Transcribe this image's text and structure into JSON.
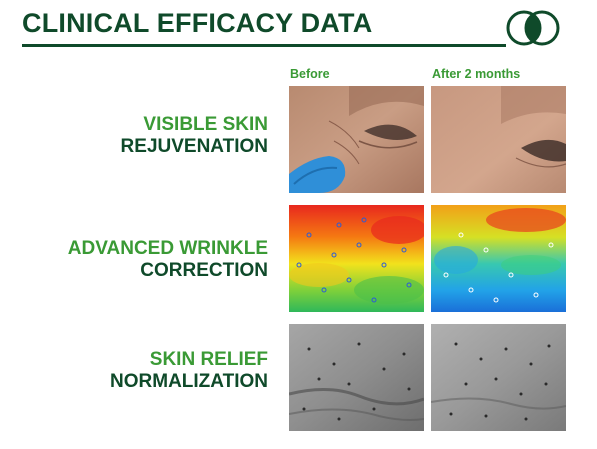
{
  "header": {
    "title": "CLINICAL EFFICACY DATA",
    "logo_icon": "double-circle-logo-icon"
  },
  "columns": {
    "before": "Before",
    "after": "After 2 months"
  },
  "rows": [
    {
      "line1": "VISIBLE SKIN",
      "line2": "REJUVENATION"
    },
    {
      "line1": "ADVANCED WRINKLE",
      "line2": "CORRECTION"
    },
    {
      "line1": "SKIN RELIEF",
      "line2": "NORMALIZATION"
    }
  ],
  "colors": {
    "dark_green": "#0f4a2a",
    "accent_green": "#3a9a35"
  }
}
